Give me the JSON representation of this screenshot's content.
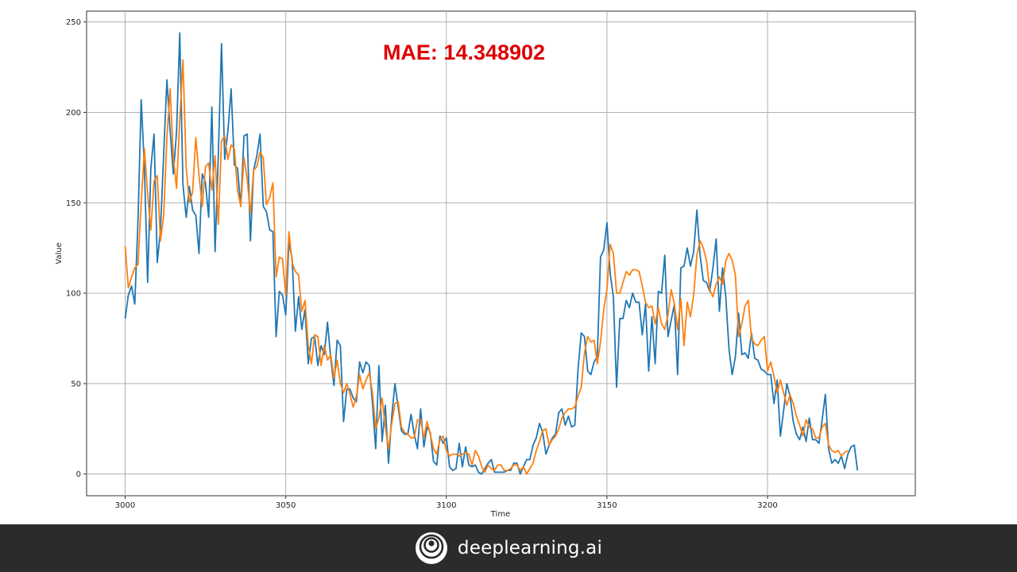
{
  "chart_data": {
    "type": "line",
    "title": "",
    "annotation": "MAE: 14.348902",
    "xlabel": "Time",
    "ylabel": "Value",
    "xlim": [
      2988,
      3246
    ],
    "ylim": [
      -12,
      256
    ],
    "xticks": [
      3000,
      3050,
      3100,
      3150,
      3200
    ],
    "yticks": [
      0,
      50,
      100,
      150,
      200,
      250
    ],
    "grid": true,
    "series": [
      {
        "color": "#1f77b4",
        "x_start": 3000,
        "values": [
          86,
          99,
          104,
          94,
          140,
          207,
          169,
          106,
          169,
          188,
          117,
          135,
          177,
          218,
          190,
          166,
          189,
          244,
          160,
          142,
          159,
          146,
          143,
          122,
          166,
          161,
          142,
          203,
          123,
          176,
          238,
          174,
          190,
          213,
          171,
          169,
          148,
          187,
          188,
          129,
          168,
          176,
          188,
          148,
          145,
          135,
          134,
          76,
          101,
          99,
          88,
          128,
          119,
          79,
          98,
          80,
          91,
          61,
          75,
          76,
          60,
          71,
          66,
          84,
          64,
          49,
          74,
          71,
          29,
          47,
          47,
          42,
          40,
          62,
          56,
          62,
          60,
          39,
          14,
          60,
          18,
          38,
          6,
          32,
          50,
          37,
          24,
          22,
          22,
          33,
          22,
          14,
          36,
          15,
          26,
          23,
          7,
          5,
          21,
          17,
          20,
          4,
          2,
          3,
          17,
          4,
          15,
          5,
          4,
          5,
          1,
          0,
          3,
          6,
          8,
          1,
          1,
          1,
          1,
          2,
          2,
          6,
          6,
          0,
          4,
          8,
          8,
          16,
          20,
          28,
          23,
          11,
          16,
          20,
          22,
          34,
          36,
          27,
          32,
          26,
          27,
          58,
          78,
          76,
          57,
          55,
          62,
          65,
          120,
          124,
          139,
          111,
          98,
          48,
          86,
          86,
          96,
          92,
          100,
          95,
          95,
          77,
          94,
          57,
          87,
          61,
          101,
          100,
          121,
          76,
          85,
          94,
          55,
          114,
          115,
          125,
          115,
          123,
          146,
          121,
          107,
          106,
          101,
          114,
          130,
          90,
          114,
          98,
          69,
          55,
          65,
          89,
          66,
          67,
          64,
          78,
          64,
          63,
          58,
          57,
          55,
          55,
          39,
          52,
          21,
          35,
          50,
          43,
          29,
          22,
          19,
          26,
          18,
          31,
          19,
          19,
          17,
          30,
          44,
          14,
          6,
          8,
          6,
          10,
          3,
          11,
          15,
          16,
          2
        ],
        "name": ""
      },
      {
        "color": "#ff7f0e",
        "x_start": 3000,
        "values": [
          126,
          103,
          109,
          114,
          116,
          150,
          180,
          155,
          135,
          162,
          165,
          129,
          143,
          186,
          213,
          175,
          158,
          196,
          229,
          170,
          150,
          156,
          186,
          165,
          148,
          170,
          172,
          157,
          176,
          138,
          184,
          187,
          174,
          182,
          180,
          157,
          148,
          175,
          163,
          144,
          168,
          170,
          178,
          175,
          149,
          153,
          161,
          109,
          120,
          119,
          99,
          134,
          117,
          112,
          110,
          90,
          96,
          71,
          61,
          77,
          76,
          60,
          71,
          63,
          66,
          53,
          63,
          50,
          45,
          50,
          44,
          37,
          43,
          55,
          47,
          52,
          56,
          45,
          25,
          31,
          42,
          26,
          14,
          28,
          39,
          40,
          26,
          23,
          22,
          20,
          20,
          30,
          30,
          20,
          29,
          22,
          14,
          11,
          19,
          21,
          13,
          10,
          11,
          11,
          10,
          11,
          12,
          11,
          5,
          13,
          10,
          4,
          1,
          5,
          3,
          2,
          5,
          5,
          2,
          2,
          3,
          5,
          5,
          2,
          4,
          0,
          3,
          6,
          13,
          18,
          24,
          25,
          16,
          19,
          21,
          25,
          31,
          34,
          36,
          36,
          37,
          43,
          48,
          67,
          76,
          73,
          74,
          61,
          73,
          91,
          102,
          127,
          122,
          100,
          100,
          106,
          112,
          110,
          113,
          113,
          112,
          104,
          95,
          92,
          93,
          83,
          92,
          83,
          80,
          88,
          102,
          94,
          80,
          97,
          71,
          95,
          87,
          99,
          121,
          129,
          125,
          118,
          102,
          98,
          105,
          109,
          105,
          118,
          122,
          118,
          110,
          76,
          83,
          93,
          96,
          75,
          72,
          71,
          74,
          76,
          57,
          62,
          54,
          45,
          52,
          45,
          38,
          44,
          39,
          32,
          27,
          21,
          30,
          26,
          25,
          20,
          20,
          26,
          28,
          16,
          13,
          12,
          13,
          10,
          12,
          13
        ],
        "name": ""
      }
    ]
  },
  "footer": {
    "brand": "deeplearning.ai",
    "logo_icon": "deeplearning-logo-icon"
  }
}
